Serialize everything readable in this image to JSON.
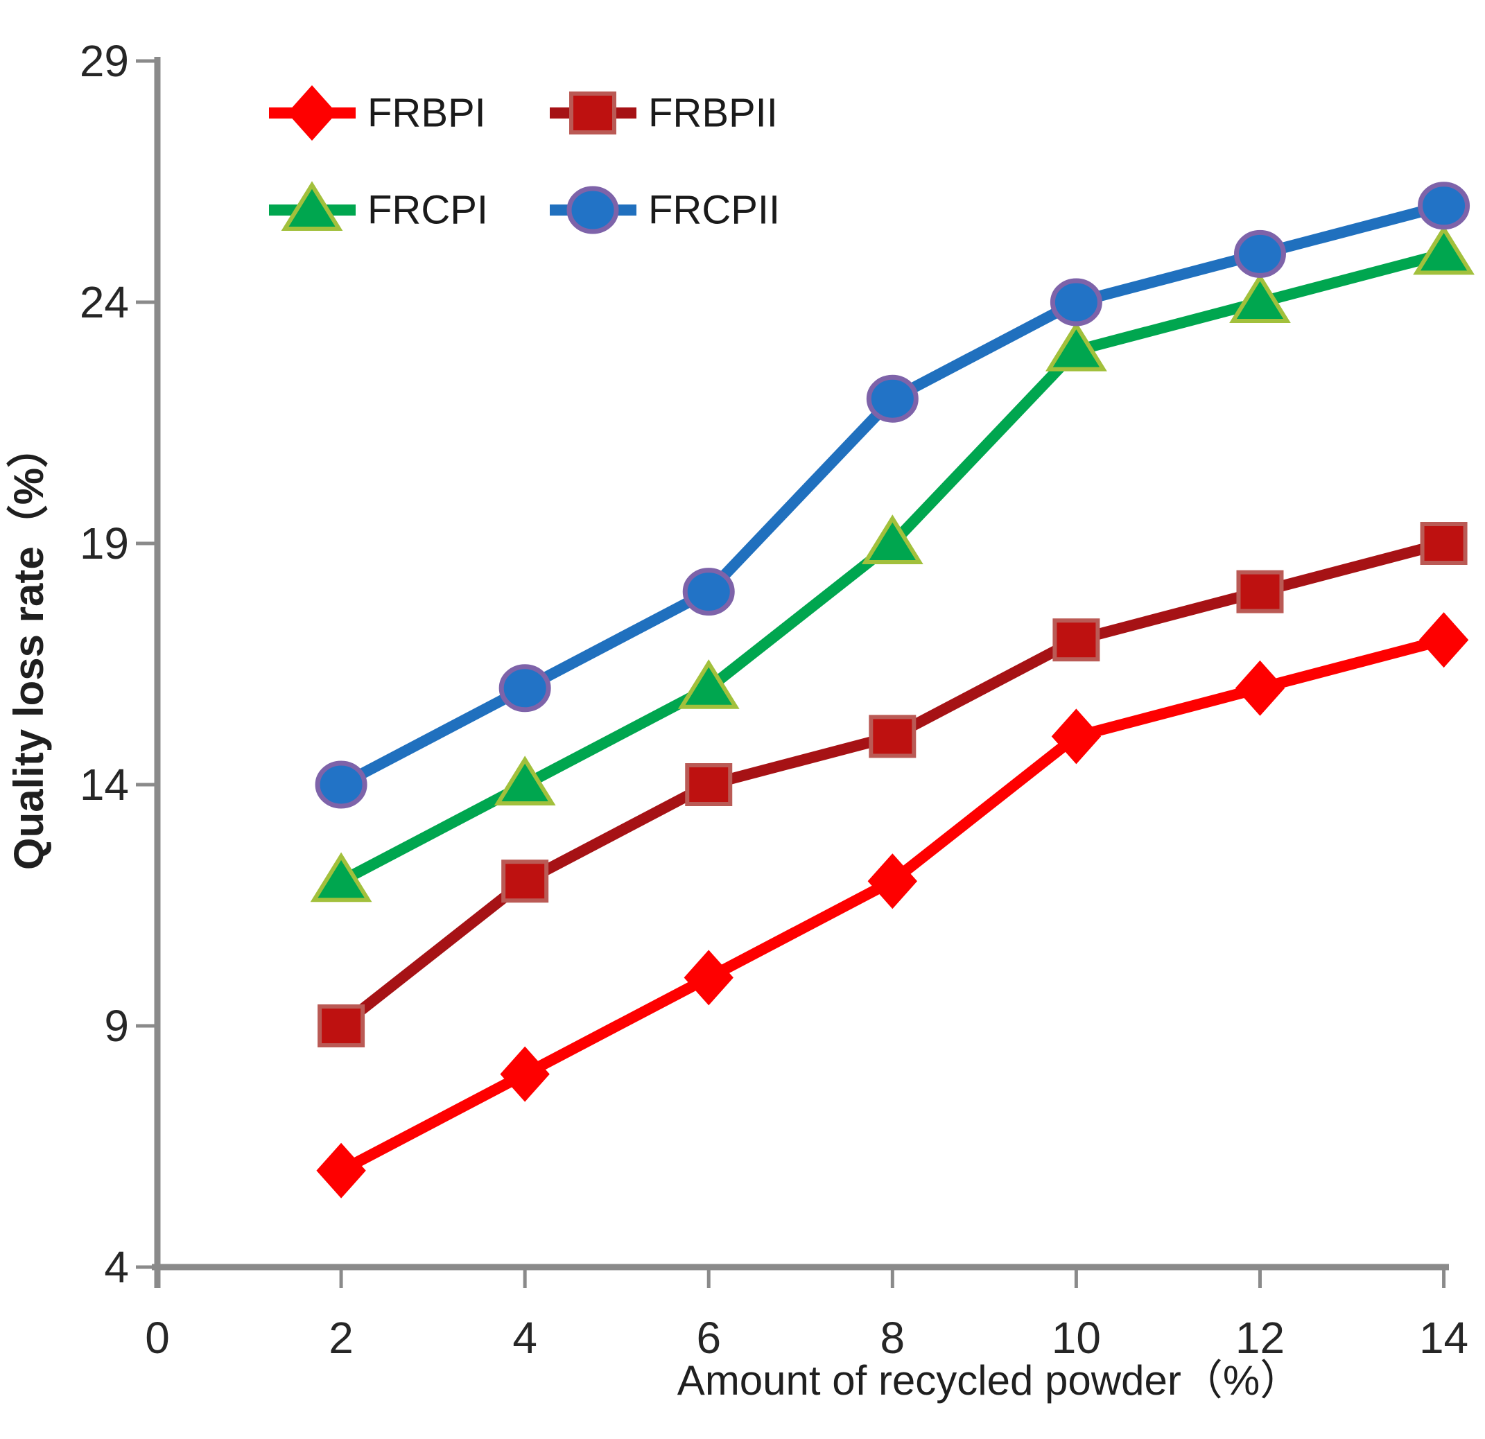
{
  "chart_data": {
    "type": "line",
    "title": "",
    "xlabel": "Amount of recycled powder（%）",
    "ylabel": "Quality loss rate（%）",
    "x": [
      2,
      4,
      6,
      8,
      10,
      12,
      14
    ],
    "series": [
      {
        "name": "FRBPI",
        "marker": "diamond",
        "color": "#FE0000",
        "marker_fill": "#FE0000",
        "marker_stroke": "#FE0000",
        "values": [
          6,
          8,
          10,
          12,
          15,
          16,
          17
        ]
      },
      {
        "name": "FRBPII",
        "marker": "square",
        "color": "#A61215",
        "marker_fill": "#BE1110",
        "marker_stroke": "#BA5A55",
        "values": [
          9,
          12,
          14,
          15,
          17,
          18,
          19
        ]
      },
      {
        "name": "FRCPI",
        "marker": "triangle",
        "color": "#00A64F",
        "marker_fill": "#00A64F",
        "marker_stroke": "#A2C03C",
        "values": [
          12,
          14,
          16,
          19,
          23,
          24,
          25
        ]
      },
      {
        "name": "FRCPII",
        "marker": "circle",
        "color": "#2070BE",
        "marker_fill": "#2273C6",
        "marker_stroke": "#7E63A9",
        "values": [
          14,
          16,
          18,
          22,
          24,
          25,
          26
        ]
      }
    ],
    "x_ticks": [
      0,
      2,
      4,
      6,
      8,
      10,
      12,
      14
    ],
    "y_ticks": [
      4,
      9,
      14,
      19,
      24,
      29
    ],
    "xlim": [
      0,
      14
    ],
    "ylim": [
      4,
      29
    ],
    "grid": false,
    "legend_position": "top-left",
    "axis_color": "#8A8A8A",
    "text_color": "#262626"
  }
}
